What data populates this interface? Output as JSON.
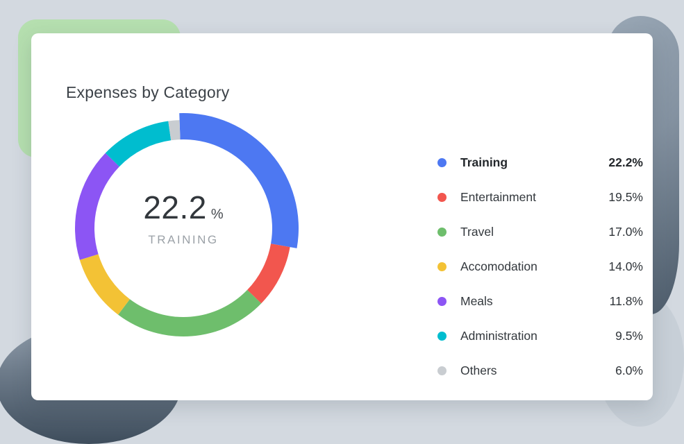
{
  "card": {
    "title": "Expenses by Category"
  },
  "chart_data": {
    "type": "pie",
    "variant": "donut",
    "title": "Expenses by Category",
    "unit": "%",
    "legend_position": "right",
    "highlighted_category": "Training",
    "center_label": {
      "value": "22.2",
      "unit": "%",
      "label": "TRAINING"
    },
    "categories": [
      "Training",
      "Entertainment",
      "Travel",
      "Accomodation",
      "Meals",
      "Administration",
      "Others"
    ],
    "values": [
      22.2,
      19.5,
      17.0,
      14.0,
      11.8,
      9.5,
      6.0
    ],
    "segments": [
      {
        "label": "Training",
        "value": 22.2,
        "display": "22.2%",
        "color": "#4d78f2",
        "start_deg": -2,
        "sweep_deg": 102,
        "highlight": true
      },
      {
        "label": "Entertainment",
        "value": 19.5,
        "display": "19.5%",
        "color": "#f2564e",
        "start_deg": 100,
        "sweep_deg": 34,
        "highlight": false
      },
      {
        "label": "Travel",
        "value": 17.0,
        "display": "17.0%",
        "color": "#6ebe6c",
        "start_deg": 134,
        "sweep_deg": 83,
        "highlight": false
      },
      {
        "label": "Accomodation",
        "value": 14.0,
        "display": "14.0%",
        "color": "#f3c235",
        "start_deg": 217,
        "sweep_deg": 36,
        "highlight": false
      },
      {
        "label": "Meals",
        "value": 11.8,
        "display": "11.8%",
        "color": "#8c55f4",
        "start_deg": 253,
        "sweep_deg": 61,
        "highlight": false
      },
      {
        "label": "Administration",
        "value": 9.5,
        "display": "9.5%",
        "color": "#00bdcf",
        "start_deg": 314,
        "sweep_deg": 38,
        "highlight": false
      },
      {
        "label": "Others",
        "value": 6.0,
        "display": "6.0%",
        "color": "#c9cdd1",
        "start_deg": 352,
        "sweep_deg": 6,
        "highlight": false
      }
    ]
  },
  "decor": {
    "background_color": "#d3d9e0",
    "green_block_color": "#b5dfaf",
    "blob_dark_color": "#3e4d5c",
    "blob_light_color": "#c7cfd7"
  }
}
